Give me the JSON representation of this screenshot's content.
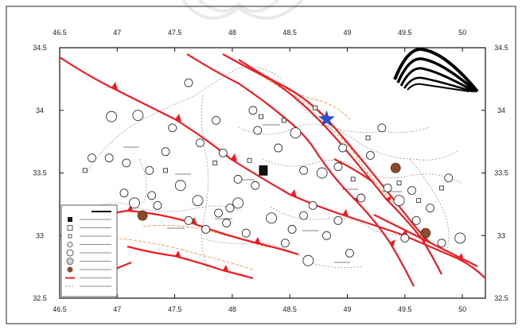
{
  "map": {
    "top_lon_ticks": [
      "46.5",
      "47",
      "47.5",
      "48",
      "48.5",
      "49",
      "49.5",
      "50"
    ],
    "bottom_lon_ticks": [
      "46.5",
      "47",
      "47.5",
      "48",
      "48.5",
      "49",
      "49.5",
      "50"
    ],
    "left_lat_ticks": [
      "34.5",
      "34",
      "33.5",
      "33",
      "32.5"
    ],
    "right_lat_ticks": [
      "34.5",
      "34",
      "33.5",
      "33",
      "32.5"
    ],
    "lon_range": [
      46.5,
      50.2
    ],
    "lat_range": [
      32.5,
      34.5
    ],
    "fault_color": "#ee1c24",
    "province_border_color": "#9a9a9a",
    "city_marker_color": "#ffffff",
    "epicenter_marker_color": "#2d4fd6",
    "star_label_color": "#2d4fd6",
    "station_marker_color": "#8b4a2b",
    "legend_title": "—",
    "logo_text": ""
  },
  "stations": [
    {
      "lon": 49.42,
      "lat": 33.54
    },
    {
      "lon": 47.22,
      "lat": 33.16
    },
    {
      "lon": 49.68,
      "lat": 33.02
    }
  ],
  "main_site": {
    "lon": 48.27,
    "lat": 33.52
  },
  "epicenter": {
    "lon": 48.82,
    "lat": 33.93
  },
  "circles": [
    {
      "lon": 46.95,
      "lat": 33.95
    },
    {
      "lon": 46.78,
      "lat": 33.62
    },
    {
      "lon": 46.93,
      "lat": 33.62
    },
    {
      "lon": 47.08,
      "lat": 33.58
    },
    {
      "lon": 47.06,
      "lat": 33.34
    },
    {
      "lon": 47.15,
      "lat": 33.26
    },
    {
      "lon": 47.3,
      "lat": 33.32
    },
    {
      "lon": 47.35,
      "lat": 33.24
    },
    {
      "lon": 47.42,
      "lat": 33.67
    },
    {
      "lon": 47.28,
      "lat": 33.52
    },
    {
      "lon": 47.18,
      "lat": 33.96
    },
    {
      "lon": 47.62,
      "lat": 34.22
    },
    {
      "lon": 47.72,
      "lat": 33.74
    },
    {
      "lon": 47.86,
      "lat": 33.92
    },
    {
      "lon": 47.92,
      "lat": 33.66
    },
    {
      "lon": 47.7,
      "lat": 33.28
    },
    {
      "lon": 47.62,
      "lat": 33.12
    },
    {
      "lon": 47.77,
      "lat": 33.05
    },
    {
      "lon": 47.88,
      "lat": 33.18
    },
    {
      "lon": 47.95,
      "lat": 33.1
    },
    {
      "lon": 48.05,
      "lat": 33.26
    },
    {
      "lon": 48.12,
      "lat": 33.02
    },
    {
      "lon": 47.98,
      "lat": 33.22
    },
    {
      "lon": 48.05,
      "lat": 33.45
    },
    {
      "lon": 48.2,
      "lat": 33.4
    },
    {
      "lon": 48.34,
      "lat": 33.14
    },
    {
      "lon": 48.52,
      "lat": 33.05
    },
    {
      "lon": 48.62,
      "lat": 33.16
    },
    {
      "lon": 48.7,
      "lat": 33.24
    },
    {
      "lon": 48.46,
      "lat": 32.94
    },
    {
      "lon": 48.66,
      "lat": 32.8
    },
    {
      "lon": 48.82,
      "lat": 33.0
    },
    {
      "lon": 48.92,
      "lat": 33.12
    },
    {
      "lon": 49.02,
      "lat": 32.86
    },
    {
      "lon": 48.92,
      "lat": 33.55
    },
    {
      "lon": 48.78,
      "lat": 33.5
    },
    {
      "lon": 48.96,
      "lat": 33.7
    },
    {
      "lon": 49.3,
      "lat": 33.86
    },
    {
      "lon": 49.2,
      "lat": 33.64
    },
    {
      "lon": 49.35,
      "lat": 33.38
    },
    {
      "lon": 49.45,
      "lat": 33.28
    },
    {
      "lon": 49.56,
      "lat": 33.36
    },
    {
      "lon": 49.6,
      "lat": 33.12
    },
    {
      "lon": 49.72,
      "lat": 33.22
    },
    {
      "lon": 49.88,
      "lat": 33.46
    },
    {
      "lon": 49.98,
      "lat": 32.98
    },
    {
      "lon": 49.82,
      "lat": 32.94
    },
    {
      "lon": 49.5,
      "lat": 32.98
    },
    {
      "lon": 48.18,
      "lat": 34.0
    },
    {
      "lon": 48.4,
      "lat": 33.7
    },
    {
      "lon": 48.55,
      "lat": 33.82
    },
    {
      "lon": 48.22,
      "lat": 33.84
    },
    {
      "lon": 47.48,
      "lat": 33.86
    },
    {
      "lon": 49.12,
      "lat": 33.3
    },
    {
      "lon": 48.62,
      "lat": 33.52
    },
    {
      "lon": 47.55,
      "lat": 33.4
    }
  ],
  "squares": [
    {
      "lon": 46.72,
      "lat": 33.52
    },
    {
      "lon": 47.42,
      "lat": 33.52
    },
    {
      "lon": 47.85,
      "lat": 33.58
    },
    {
      "lon": 48.25,
      "lat": 33.95
    },
    {
      "lon": 48.45,
      "lat": 33.92
    },
    {
      "lon": 48.72,
      "lat": 34.02
    },
    {
      "lon": 49.18,
      "lat": 33.78
    },
    {
      "lon": 49.05,
      "lat": 33.45
    },
    {
      "lon": 49.45,
      "lat": 33.42
    },
    {
      "lon": 49.82,
      "lat": 33.38
    },
    {
      "lon": 49.62,
      "lat": 33.28
    },
    {
      "lon": 48.15,
      "lat": 33.6
    }
  ],
  "legend": {
    "entries": [
      {
        "symbol": "filled-square"
      },
      {
        "symbol": "open-square"
      },
      {
        "symbol": "small-square"
      },
      {
        "symbol": "circle"
      },
      {
        "symbol": "big-circle"
      },
      {
        "symbol": "double-circle"
      },
      {
        "symbol": "station"
      },
      {
        "symbol": "fault-line"
      },
      {
        "symbol": "province-line"
      }
    ]
  }
}
